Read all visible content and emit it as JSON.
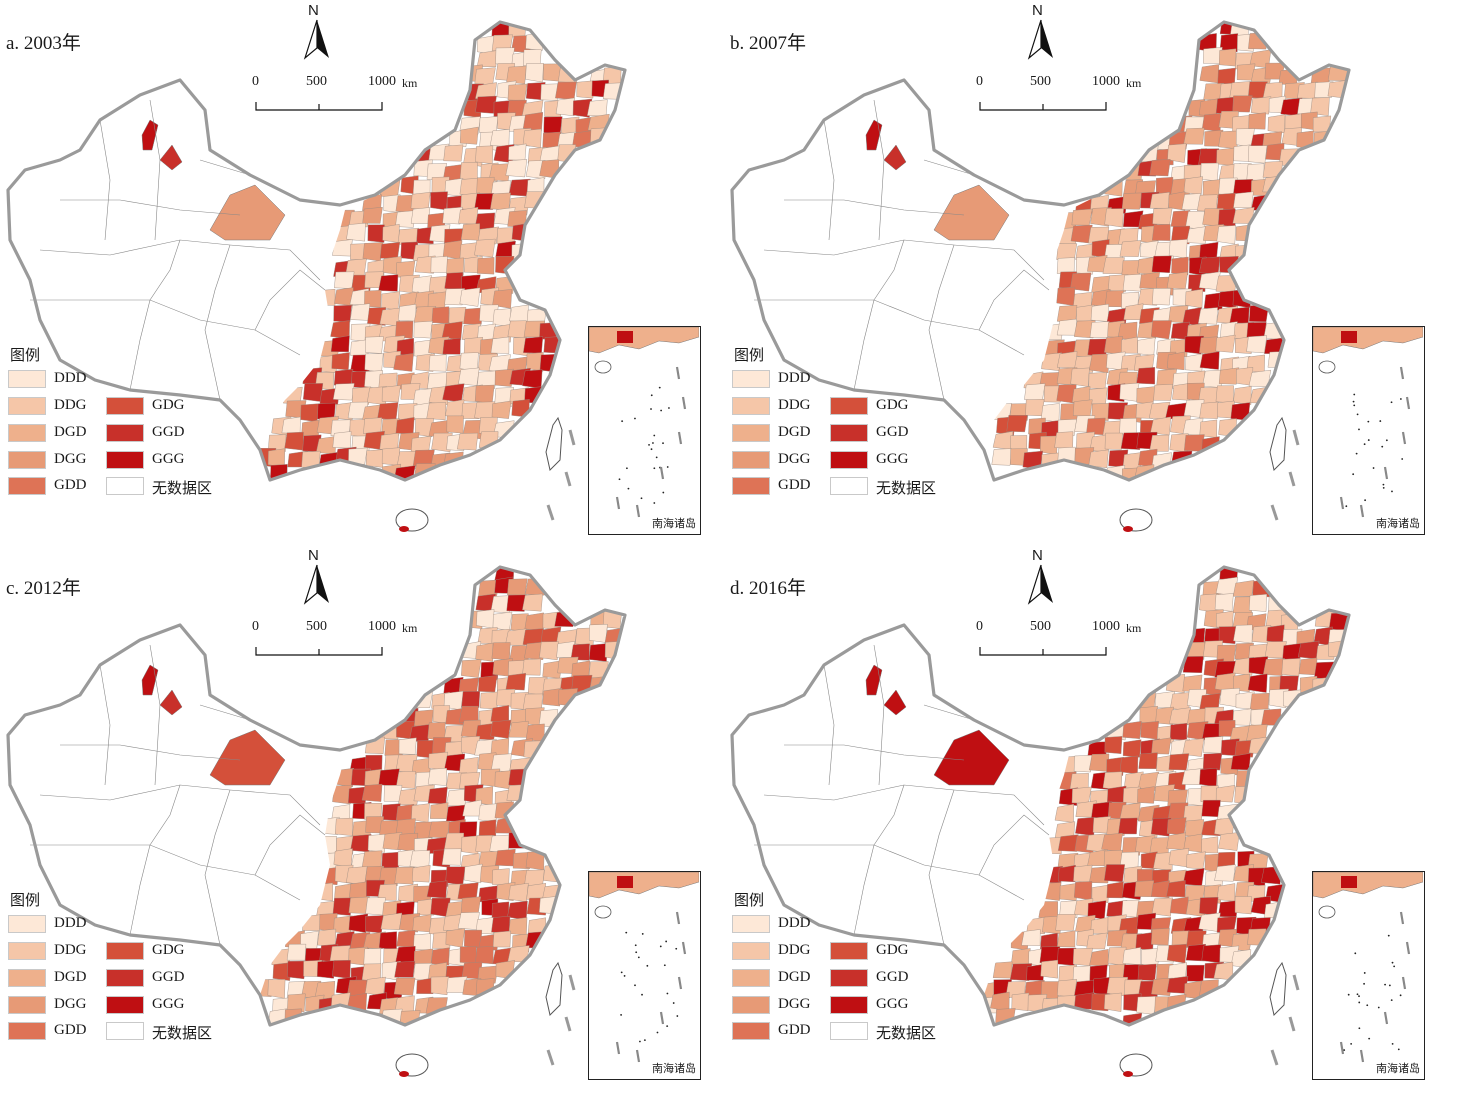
{
  "colors": {
    "DDD": "#fde8d7",
    "DDG": "#f5c6a8",
    "DGD": "#eeb08c",
    "DGG": "#e79a76",
    "GDD": "#de7356",
    "GDG": "#d4503a",
    "GGD": "#c8302a",
    "GGG": "#bf0f12",
    "none": "#ffffff"
  },
  "scale_bar": {
    "ticks": [
      "0",
      "500",
      "1000"
    ],
    "unit": "km"
  },
  "north_label": "N",
  "legend": {
    "title": "图例",
    "items": [
      {
        "label": "DDD",
        "class": "DDD"
      },
      {
        "label": "DDG",
        "class": "DDG"
      },
      {
        "label": "DGD",
        "class": "DGD"
      },
      {
        "label": "DGG",
        "class": "DGG"
      },
      {
        "label": "GDD",
        "class": "GDD"
      },
      {
        "label": "GDG",
        "class": "GDG"
      },
      {
        "label": "GGD",
        "class": "GGD"
      },
      {
        "label": "GGG",
        "class": "GGG"
      },
      {
        "label": "无数据区",
        "class": "none"
      }
    ]
  },
  "inset_label": "南海诸岛",
  "panels": [
    {
      "title": "a. 2003年",
      "mix": {
        "DDD": 26,
        "DDG": 28,
        "DGD": 12,
        "DGG": 8,
        "GDD": 4,
        "GDG": 6,
        "GGD": 8,
        "GGG": 8
      }
    },
    {
      "title": "b. 2007年",
      "mix": {
        "DDD": 18,
        "DDG": 28,
        "DGD": 16,
        "DGG": 10,
        "GDD": 6,
        "GDG": 6,
        "GGD": 8,
        "GGG": 8
      }
    },
    {
      "title": "c. 2012年",
      "mix": {
        "DDD": 14,
        "DDG": 26,
        "DGD": 16,
        "DGG": 12,
        "GDD": 6,
        "GDG": 8,
        "GGD": 9,
        "GGG": 9
      }
    },
    {
      "title": "d. 2016年",
      "mix": {
        "DDD": 12,
        "DDG": 24,
        "DGD": 16,
        "DGG": 12,
        "GDD": 7,
        "GDG": 8,
        "GGD": 10,
        "GGG": 11
      }
    }
  ]
}
